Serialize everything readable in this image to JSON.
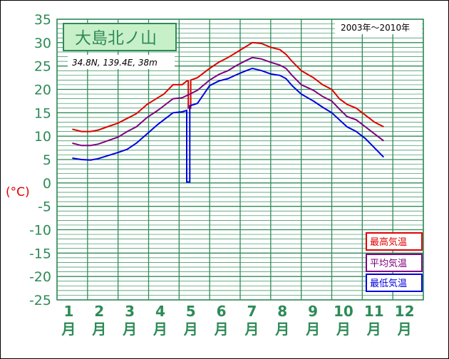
{
  "chart_data": {
    "type": "line",
    "title": "大島北ノ山",
    "subtitle": "34.8N,  139.4E,  38m",
    "period": "2003年～2010年",
    "unit_label": "(°C)",
    "ylim": [
      -25,
      35
    ],
    "yticks": [
      35,
      30,
      25,
      20,
      15,
      10,
      5,
      0,
      -5,
      -10,
      -15,
      -20,
      -25
    ],
    "grid": true,
    "legend_placement": "bottom-right",
    "x_months": [
      {
        "num": "1",
        "unit": "月"
      },
      {
        "num": "2",
        "unit": "月"
      },
      {
        "num": "3",
        "unit": "月"
      },
      {
        "num": "4",
        "unit": "月"
      },
      {
        "num": "5",
        "unit": "月"
      },
      {
        "num": "6",
        "unit": "月"
      },
      {
        "num": "7",
        "unit": "月"
      },
      {
        "num": "8",
        "unit": "月"
      },
      {
        "num": "9",
        "unit": "月"
      },
      {
        "num": "10",
        "unit": "月"
      },
      {
        "num": "11",
        "unit": "月"
      },
      {
        "num": "12",
        "unit": "月"
      }
    ],
    "series": [
      {
        "name": "最高気温",
        "color": "#e00000",
        "values": [
          [
            1.0,
            11.5
          ],
          [
            1.3,
            11.0
          ],
          [
            1.6,
            11.0
          ],
          [
            1.85,
            11.3
          ],
          [
            2.15,
            12.0
          ],
          [
            2.5,
            12.8
          ],
          [
            2.8,
            13.8
          ],
          [
            3.1,
            14.8
          ],
          [
            3.45,
            16.8
          ],
          [
            3.8,
            18.2
          ],
          [
            4.0,
            19.0
          ],
          [
            4.3,
            21.0
          ],
          [
            4.6,
            21.0
          ],
          [
            4.75,
            21.8
          ],
          [
            4.8,
            21.8
          ],
          [
            4.8,
            16.0
          ],
          [
            4.88,
            16.0
          ],
          [
            4.88,
            22.0
          ],
          [
            5.1,
            22.5
          ],
          [
            5.5,
            24.5
          ],
          [
            5.8,
            25.8
          ],
          [
            6.1,
            26.8
          ],
          [
            6.4,
            28.0
          ],
          [
            6.7,
            29.2
          ],
          [
            6.9,
            30.0
          ],
          [
            7.2,
            29.8
          ],
          [
            7.5,
            29.0
          ],
          [
            7.8,
            28.5
          ],
          [
            8.0,
            27.5
          ],
          [
            8.2,
            26.0
          ],
          [
            8.5,
            24.0
          ],
          [
            8.9,
            22.5
          ],
          [
            9.2,
            21.0
          ],
          [
            9.5,
            20.0
          ],
          [
            9.75,
            18.0
          ],
          [
            10.0,
            16.8
          ],
          [
            10.3,
            16.0
          ],
          [
            10.6,
            14.5
          ],
          [
            10.9,
            13.0
          ],
          [
            11.2,
            12.0
          ]
        ]
      },
      {
        "name": "平均気温",
        "color": "#800080",
        "values": [
          [
            1.0,
            8.5
          ],
          [
            1.3,
            8.0
          ],
          [
            1.6,
            8.0
          ],
          [
            1.85,
            8.3
          ],
          [
            2.15,
            9.0
          ],
          [
            2.5,
            9.8
          ],
          [
            2.8,
            11.0
          ],
          [
            3.1,
            12.0
          ],
          [
            3.45,
            14.0
          ],
          [
            3.8,
            15.5
          ],
          [
            4.0,
            16.5
          ],
          [
            4.3,
            18.0
          ],
          [
            4.6,
            18.2
          ],
          [
            4.85,
            19.0
          ],
          [
            5.1,
            19.8
          ],
          [
            5.5,
            22.0
          ],
          [
            5.8,
            23.2
          ],
          [
            6.1,
            24.0
          ],
          [
            6.4,
            25.2
          ],
          [
            6.7,
            26.2
          ],
          [
            6.9,
            26.8
          ],
          [
            7.2,
            26.5
          ],
          [
            7.5,
            25.8
          ],
          [
            7.8,
            25.2
          ],
          [
            8.0,
            24.5
          ],
          [
            8.2,
            23.0
          ],
          [
            8.5,
            21.0
          ],
          [
            8.9,
            19.8
          ],
          [
            9.2,
            18.5
          ],
          [
            9.5,
            17.5
          ],
          [
            9.75,
            15.8
          ],
          [
            10.0,
            14.2
          ],
          [
            10.3,
            13.5
          ],
          [
            10.6,
            12.0
          ],
          [
            10.9,
            10.5
          ],
          [
            11.2,
            9.0
          ]
        ]
      },
      {
        "name": "最低気温",
        "color": "#0000e0",
        "values": [
          [
            1.0,
            5.3
          ],
          [
            1.3,
            5.0
          ],
          [
            1.6,
            4.9
          ],
          [
            1.85,
            5.2
          ],
          [
            2.15,
            5.8
          ],
          [
            2.5,
            6.5
          ],
          [
            2.8,
            7.2
          ],
          [
            3.1,
            8.5
          ],
          [
            3.45,
            10.5
          ],
          [
            3.8,
            12.5
          ],
          [
            4.0,
            13.5
          ],
          [
            4.3,
            15.0
          ],
          [
            4.6,
            15.2
          ],
          [
            4.75,
            15.5
          ],
          [
            4.75,
            0.2
          ],
          [
            4.85,
            0.2
          ],
          [
            4.85,
            16.5
          ],
          [
            5.1,
            17.0
          ],
          [
            5.5,
            20.8
          ],
          [
            5.8,
            21.8
          ],
          [
            6.1,
            22.3
          ],
          [
            6.4,
            23.2
          ],
          [
            6.7,
            24.0
          ],
          [
            6.9,
            24.5
          ],
          [
            7.2,
            24.0
          ],
          [
            7.5,
            23.3
          ],
          [
            7.8,
            23.0
          ],
          [
            8.0,
            22.3
          ],
          [
            8.2,
            20.8
          ],
          [
            8.5,
            19.0
          ],
          [
            8.9,
            17.5
          ],
          [
            9.2,
            16.2
          ],
          [
            9.5,
            15.0
          ],
          [
            9.75,
            13.5
          ],
          [
            10.0,
            12.0
          ],
          [
            10.3,
            11.0
          ],
          [
            10.6,
            9.5
          ],
          [
            10.9,
            7.5
          ],
          [
            11.2,
            5.5
          ]
        ]
      }
    ]
  }
}
